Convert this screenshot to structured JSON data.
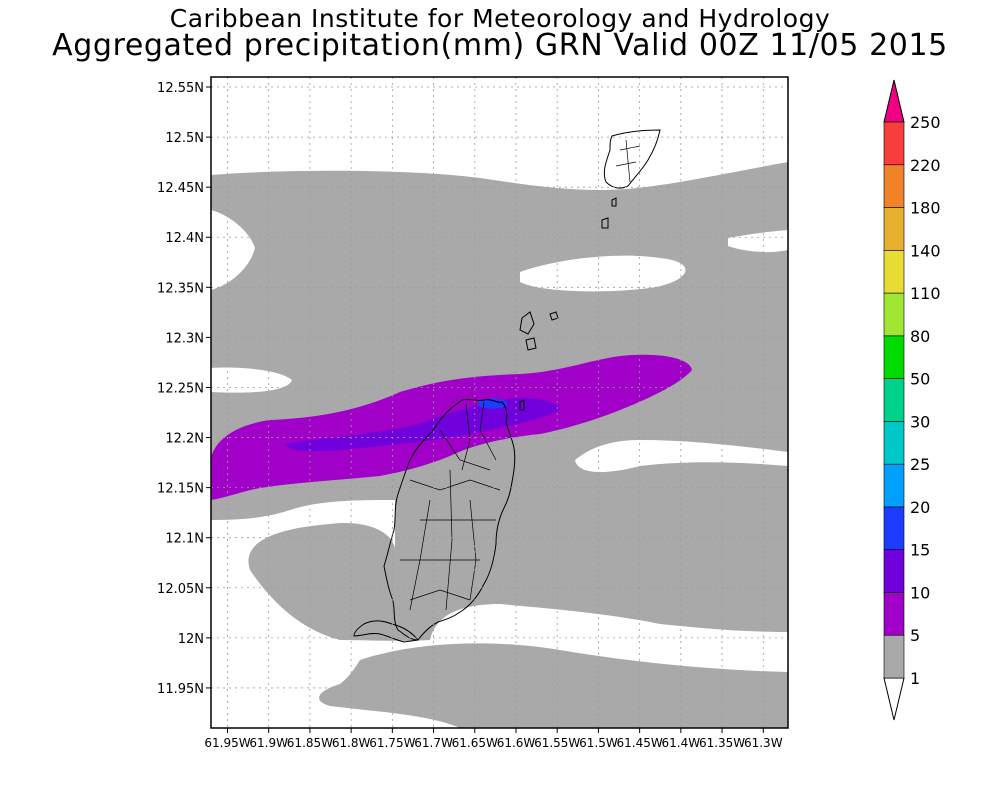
{
  "title_line1": "Caribbean Institute for Meteorology and Hydrology",
  "title_line2": "Aggregated precipitation(mm) GRN Valid 00Z 11/05 2015",
  "map": {
    "lon_range": [
      -61.97,
      -61.27
    ],
    "lat_range": [
      11.91,
      12.56
    ],
    "lat_ticks": [
      {
        "v": 12.55,
        "label": "12.55N"
      },
      {
        "v": 12.5,
        "label": "12.5N"
      },
      {
        "v": 12.45,
        "label": "12.45N"
      },
      {
        "v": 12.4,
        "label": "12.4N"
      },
      {
        "v": 12.35,
        "label": "12.35N"
      },
      {
        "v": 12.3,
        "label": "12.3N"
      },
      {
        "v": 12.25,
        "label": "12.25N"
      },
      {
        "v": 12.2,
        "label": "12.2N"
      },
      {
        "v": 12.15,
        "label": "12.15N"
      },
      {
        "v": 12.1,
        "label": "12.1N"
      },
      {
        "v": 12.05,
        "label": "12.05N"
      },
      {
        "v": 12.0,
        "label": "12N"
      },
      {
        "v": 11.95,
        "label": "11.95N"
      }
    ],
    "lon_ticks": [
      {
        "v": -61.95,
        "label": "61.95W"
      },
      {
        "v": -61.9,
        "label": "61.9W"
      },
      {
        "v": -61.85,
        "label": "61.85W"
      },
      {
        "v": -61.8,
        "label": "61.8W"
      },
      {
        "v": -61.75,
        "label": "61.75W"
      },
      {
        "v": -61.7,
        "label": "61.7W"
      },
      {
        "v": -61.65,
        "label": "61.65W"
      },
      {
        "v": -61.6,
        "label": "61.6W"
      },
      {
        "v": -61.55,
        "label": "61.55W"
      },
      {
        "v": -61.5,
        "label": "61.5W"
      },
      {
        "v": -61.45,
        "label": "61.45W"
      },
      {
        "v": -61.4,
        "label": "61.4W"
      },
      {
        "v": -61.35,
        "label": "61.35W"
      },
      {
        "v": -61.3,
        "label": "61.3W"
      }
    ],
    "grid": true,
    "precip_colors": {
      "band_1_5": "#a9a9a9",
      "band_5_10": "#a000c8",
      "band_10_15": "#7000dc",
      "band_15_20": "#1e3cff"
    }
  },
  "colorbar": {
    "levels": [
      "1",
      "5",
      "10",
      "15",
      "20",
      "25",
      "30",
      "50",
      "80",
      "110",
      "140",
      "180",
      "220",
      "250"
    ],
    "colors": [
      "#a9a9a9",
      "#a000c8",
      "#7000dc",
      "#1e3cff",
      "#00a0ff",
      "#00c8c8",
      "#00d28c",
      "#00dc00",
      "#a0e632",
      "#e6dc32",
      "#e6af2d",
      "#f08228",
      "#fa3c3c"
    ],
    "below_color": "#ffffff",
    "above_color": "#f00082"
  }
}
